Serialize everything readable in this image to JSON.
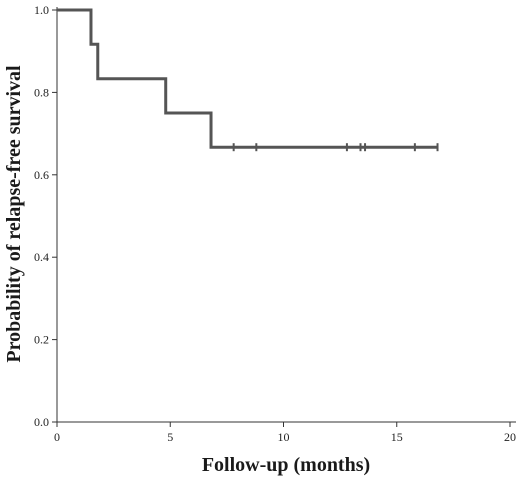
{
  "chart_data": {
    "type": "line",
    "subtype": "kaplan-meier step curve",
    "xlabel": "Follow-up (months)",
    "ylabel": "Probability of relapse-free survival",
    "xlim": [
      0,
      20
    ],
    "ylim": [
      0,
      1.0
    ],
    "x_ticks": [
      0,
      5,
      10,
      15,
      20
    ],
    "x_tick_labels": [
      "0",
      "5",
      "10",
      "15",
      "20"
    ],
    "y_ticks": [
      0,
      0.2,
      0.4,
      0.6,
      0.8,
      1.0
    ],
    "y_tick_labels": [
      "0.0",
      "0.2",
      "0.4",
      "0.6",
      "0.8",
      "1.0"
    ],
    "grid": false,
    "series": [
      {
        "steps": [
          {
            "x": 0,
            "y": 1.0
          },
          {
            "x": 1.5,
            "y": 0.917
          },
          {
            "x": 1.8,
            "y": 0.833
          },
          {
            "x": 4.8,
            "y": 0.75
          },
          {
            "x": 6.8,
            "y": 0.667
          }
        ],
        "end_x": 16.8,
        "censored_x": [
          7.8,
          8.8,
          12.8,
          13.4,
          13.6,
          15.8,
          16.8
        ],
        "color": "#555555"
      }
    ]
  }
}
